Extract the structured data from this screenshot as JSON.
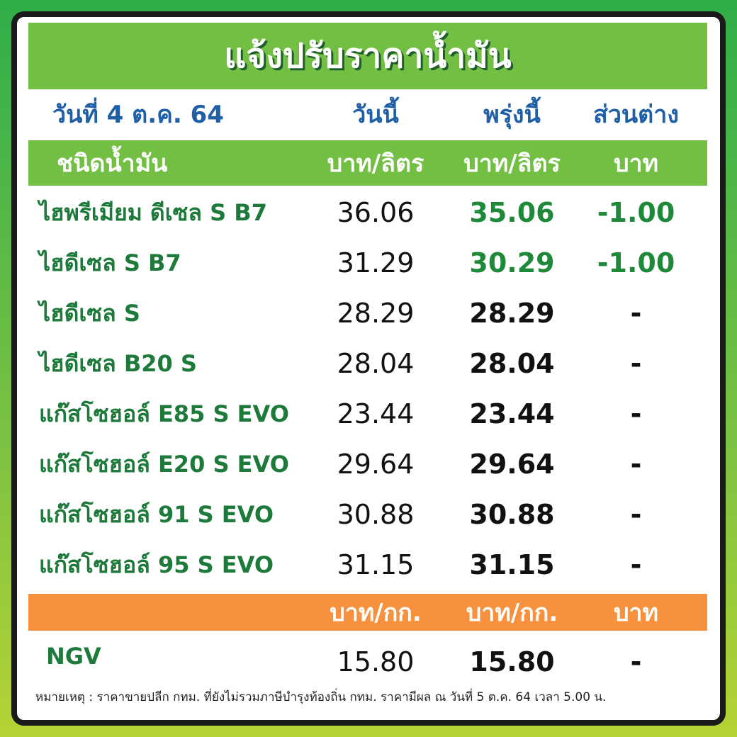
{
  "header": {
    "title": "แจ้งปรับราคาน้ำมัน"
  },
  "table": {
    "columns": [
      "วันที่ 4 ต.ค. 64",
      "วันนี้",
      "พรุ่งนี้",
      "ส่วนต่าง"
    ],
    "units": [
      "ชนิดน้ำมัน",
      "บาท/ลิตร",
      "บาท/ลิตร",
      "บาท"
    ],
    "rows": [
      [
        "ไฮพรีเมียม ดีเซล S B7",
        "36.06",
        "35.06",
        "-1.00"
      ],
      [
        "ไฮดีเซล S B7",
        "31.29",
        "30.29",
        "-1.00"
      ],
      [
        "ไฮดีเซล S",
        "28.29",
        "28.29",
        "-"
      ],
      [
        "ไฮดีเซล B20 S",
        "28.04",
        "28.04",
        "-"
      ],
      [
        "แก๊สโซฮอล์ E85 S EVO",
        "23.44",
        "23.44",
        "-"
      ],
      [
        "แก๊สโซฮอล์ E20 S EVO",
        "29.64",
        "29.64",
        "-"
      ],
      [
        "แก๊สโซฮอล์ 91 S EVO",
        "30.88",
        "30.88",
        "-"
      ],
      [
        "แก๊สโซฮอล์ 95 S EVO",
        "31.15",
        "31.15",
        "-"
      ]
    ],
    "units2": [
      "บาท/กก.",
      "บาท/กก.",
      "บาท"
    ],
    "rows2": [
      [
        "NGV",
        "15.80",
        "15.80",
        "-"
      ]
    ]
  },
  "note": "หมายเหตุ :  ราคาขายปลีก กทม. ที่ยังไม่รวมภาษีบำรุงท้องถิ่น กทม.  ราคามีผล ณ วันที่ 5 ต.ค. 64 เวลา 5.00 น."
}
